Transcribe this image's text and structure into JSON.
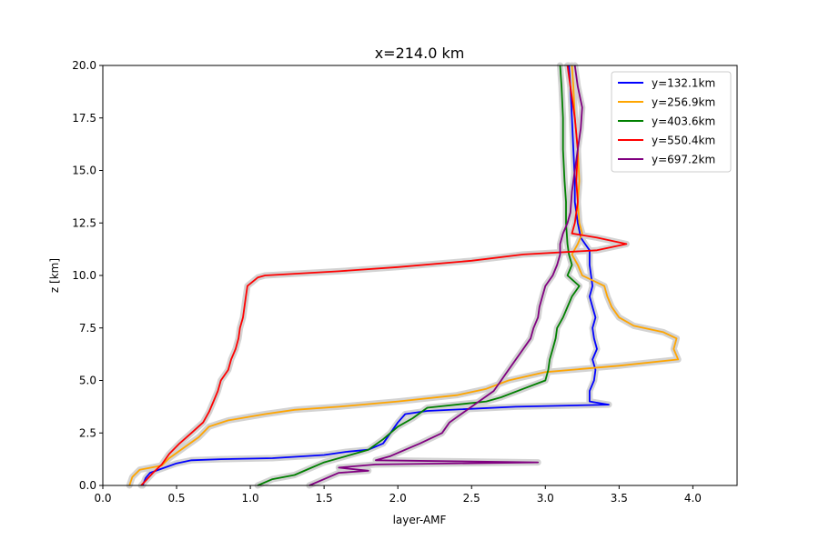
{
  "chart_data": {
    "type": "line",
    "title": "x=214.0 km",
    "xlabel": "layer-AMF",
    "ylabel": "z [km]",
    "xlim": [
      0.0,
      4.3
    ],
    "ylim": [
      0.0,
      20.0
    ],
    "x_ticks": [
      "0.0",
      "0.5",
      "1.0",
      "1.5",
      "2.0",
      "2.5",
      "3.0",
      "3.5",
      "4.0"
    ],
    "y_ticks": [
      "0.0",
      "2.5",
      "5.0",
      "7.5",
      "10.0",
      "12.5",
      "15.0",
      "17.5",
      "20.0"
    ],
    "grid": false,
    "legend_position": "top-right",
    "uncertainty_band_color": "#d3d3d3",
    "series": [
      {
        "name": "y=132.1km",
        "color": "#0000ff",
        "points": [
          [
            0.27,
            0.0
          ],
          [
            0.29,
            0.35
          ],
          [
            0.32,
            0.6
          ],
          [
            0.4,
            0.8
          ],
          [
            0.5,
            1.05
          ],
          [
            0.6,
            1.2
          ],
          [
            0.8,
            1.25
          ],
          [
            1.15,
            1.3
          ],
          [
            1.5,
            1.45
          ],
          [
            1.65,
            1.6
          ],
          [
            1.8,
            1.7
          ],
          [
            1.9,
            2.0
          ],
          [
            1.95,
            2.5
          ],
          [
            2.0,
            3.0
          ],
          [
            2.05,
            3.4
          ],
          [
            2.2,
            3.55
          ],
          [
            2.8,
            3.75
          ],
          [
            3.43,
            3.85
          ],
          [
            3.3,
            4.0
          ],
          [
            3.3,
            4.5
          ],
          [
            3.33,
            5.0
          ],
          [
            3.34,
            5.5
          ],
          [
            3.32,
            6.0
          ],
          [
            3.35,
            6.5
          ],
          [
            3.33,
            7.0
          ],
          [
            3.32,
            7.5
          ],
          [
            3.34,
            8.0
          ],
          [
            3.32,
            8.5
          ],
          [
            3.3,
            9.0
          ],
          [
            3.32,
            9.5
          ],
          [
            3.31,
            10.0
          ],
          [
            3.3,
            10.5
          ],
          [
            3.3,
            11.2
          ],
          [
            3.27,
            11.5
          ],
          [
            3.24,
            11.8
          ],
          [
            3.22,
            12.5
          ],
          [
            3.2,
            13.5
          ],
          [
            3.2,
            14.5
          ],
          [
            3.19,
            16.0
          ],
          [
            3.18,
            17.5
          ],
          [
            3.17,
            19.0
          ],
          [
            3.16,
            20.0
          ]
        ]
      },
      {
        "name": "y=256.9km",
        "color": "#ffa500",
        "points": [
          [
            0.18,
            0.0
          ],
          [
            0.2,
            0.4
          ],
          [
            0.25,
            0.75
          ],
          [
            0.4,
            0.95
          ],
          [
            0.45,
            1.3
          ],
          [
            0.55,
            1.8
          ],
          [
            0.65,
            2.3
          ],
          [
            0.72,
            2.8
          ],
          [
            0.85,
            3.1
          ],
          [
            1.1,
            3.4
          ],
          [
            1.3,
            3.6
          ],
          [
            1.6,
            3.75
          ],
          [
            2.0,
            4.0
          ],
          [
            2.4,
            4.3
          ],
          [
            2.6,
            4.6
          ],
          [
            2.75,
            5.0
          ],
          [
            3.0,
            5.4
          ],
          [
            3.5,
            5.7
          ],
          [
            3.9,
            6.0
          ],
          [
            3.87,
            6.5
          ],
          [
            3.89,
            7.0
          ],
          [
            3.8,
            7.3
          ],
          [
            3.6,
            7.6
          ],
          [
            3.5,
            8.0
          ],
          [
            3.45,
            8.5
          ],
          [
            3.42,
            9.0
          ],
          [
            3.4,
            9.5
          ],
          [
            3.25,
            10.0
          ],
          [
            3.22,
            10.5
          ],
          [
            3.18,
            11.0
          ],
          [
            3.22,
            11.5
          ],
          [
            3.25,
            12.0
          ],
          [
            3.23,
            12.5
          ],
          [
            3.22,
            13.5
          ],
          [
            3.23,
            14.5
          ],
          [
            3.22,
            16.0
          ],
          [
            3.2,
            17.5
          ],
          [
            3.19,
            19.0
          ],
          [
            3.18,
            20.0
          ]
        ]
      },
      {
        "name": "y=403.6km",
        "color": "#008000",
        "points": [
          [
            1.05,
            0.0
          ],
          [
            1.15,
            0.3
          ],
          [
            1.3,
            0.5
          ],
          [
            1.4,
            0.8
          ],
          [
            1.5,
            1.1
          ],
          [
            1.65,
            1.4
          ],
          [
            1.8,
            1.7
          ],
          [
            1.9,
            2.2
          ],
          [
            2.0,
            2.8
          ],
          [
            2.1,
            3.2
          ],
          [
            2.2,
            3.7
          ],
          [
            2.6,
            4.0
          ],
          [
            2.7,
            4.2
          ],
          [
            2.85,
            4.6
          ],
          [
            3.0,
            5.0
          ],
          [
            3.02,
            5.5
          ],
          [
            3.03,
            6.0
          ],
          [
            3.05,
            6.5
          ],
          [
            3.07,
            7.0
          ],
          [
            3.08,
            7.5
          ],
          [
            3.12,
            8.0
          ],
          [
            3.15,
            8.5
          ],
          [
            3.18,
            9.0
          ],
          [
            3.23,
            9.5
          ],
          [
            3.15,
            10.0
          ],
          [
            3.18,
            10.5
          ],
          [
            3.16,
            11.0
          ],
          [
            3.15,
            11.5
          ],
          [
            3.14,
            12.5
          ],
          [
            3.14,
            13.5
          ],
          [
            3.13,
            14.5
          ],
          [
            3.12,
            16.0
          ],
          [
            3.12,
            17.5
          ],
          [
            3.11,
            19.0
          ],
          [
            3.1,
            20.0
          ]
        ]
      },
      {
        "name": "y=550.4km",
        "color": "#ff0000",
        "points": [
          [
            0.26,
            0.0
          ],
          [
            0.3,
            0.3
          ],
          [
            0.34,
            0.6
          ],
          [
            0.4,
            1.0
          ],
          [
            0.45,
            1.5
          ],
          [
            0.52,
            2.0
          ],
          [
            0.6,
            2.5
          ],
          [
            0.68,
            3.0
          ],
          [
            0.72,
            3.5
          ],
          [
            0.75,
            4.0
          ],
          [
            0.78,
            4.5
          ],
          [
            0.8,
            5.0
          ],
          [
            0.85,
            5.5
          ],
          [
            0.87,
            6.0
          ],
          [
            0.9,
            6.5
          ],
          [
            0.92,
            7.0
          ],
          [
            0.93,
            7.5
          ],
          [
            0.95,
            8.0
          ],
          [
            0.96,
            8.5
          ],
          [
            0.97,
            9.0
          ],
          [
            0.98,
            9.5
          ],
          [
            1.05,
            9.9
          ],
          [
            1.1,
            10.0
          ],
          [
            1.6,
            10.2
          ],
          [
            2.0,
            10.4
          ],
          [
            2.5,
            10.7
          ],
          [
            2.85,
            11.0
          ],
          [
            3.35,
            11.2
          ],
          [
            3.55,
            11.5
          ],
          [
            3.35,
            11.8
          ],
          [
            3.18,
            12.0
          ],
          [
            3.2,
            12.5
          ],
          [
            3.22,
            13.5
          ],
          [
            3.21,
            14.5
          ],
          [
            3.22,
            16.0
          ],
          [
            3.2,
            17.5
          ],
          [
            3.17,
            19.0
          ],
          [
            3.15,
            20.0
          ]
        ]
      },
      {
        "name": "y=697.2km",
        "color": "#800080",
        "points": [
          [
            1.4,
            0.0
          ],
          [
            1.5,
            0.3
          ],
          [
            1.6,
            0.6
          ],
          [
            1.8,
            0.7
          ],
          [
            1.6,
            0.85
          ],
          [
            1.85,
            1.0
          ],
          [
            2.95,
            1.1
          ],
          [
            1.85,
            1.2
          ],
          [
            1.95,
            1.4
          ],
          [
            2.05,
            1.7
          ],
          [
            2.15,
            2.0
          ],
          [
            2.3,
            2.5
          ],
          [
            2.35,
            3.0
          ],
          [
            2.45,
            3.5
          ],
          [
            2.55,
            4.0
          ],
          [
            2.65,
            4.5
          ],
          [
            2.7,
            5.0
          ],
          [
            2.75,
            5.5
          ],
          [
            2.8,
            6.0
          ],
          [
            2.85,
            6.5
          ],
          [
            2.9,
            7.0
          ],
          [
            2.92,
            7.5
          ],
          [
            2.95,
            8.0
          ],
          [
            2.96,
            8.5
          ],
          [
            2.98,
            9.0
          ],
          [
            3.0,
            9.5
          ],
          [
            3.05,
            10.0
          ],
          [
            3.08,
            10.5
          ],
          [
            3.1,
            11.0
          ],
          [
            3.1,
            11.5
          ],
          [
            3.12,
            12.0
          ],
          [
            3.15,
            12.5
          ],
          [
            3.17,
            13.0
          ],
          [
            3.18,
            14.0
          ],
          [
            3.2,
            15.0
          ],
          [
            3.22,
            16.0
          ],
          [
            3.24,
            17.0
          ],
          [
            3.25,
            18.0
          ],
          [
            3.22,
            19.0
          ],
          [
            3.2,
            20.0
          ]
        ]
      }
    ]
  }
}
